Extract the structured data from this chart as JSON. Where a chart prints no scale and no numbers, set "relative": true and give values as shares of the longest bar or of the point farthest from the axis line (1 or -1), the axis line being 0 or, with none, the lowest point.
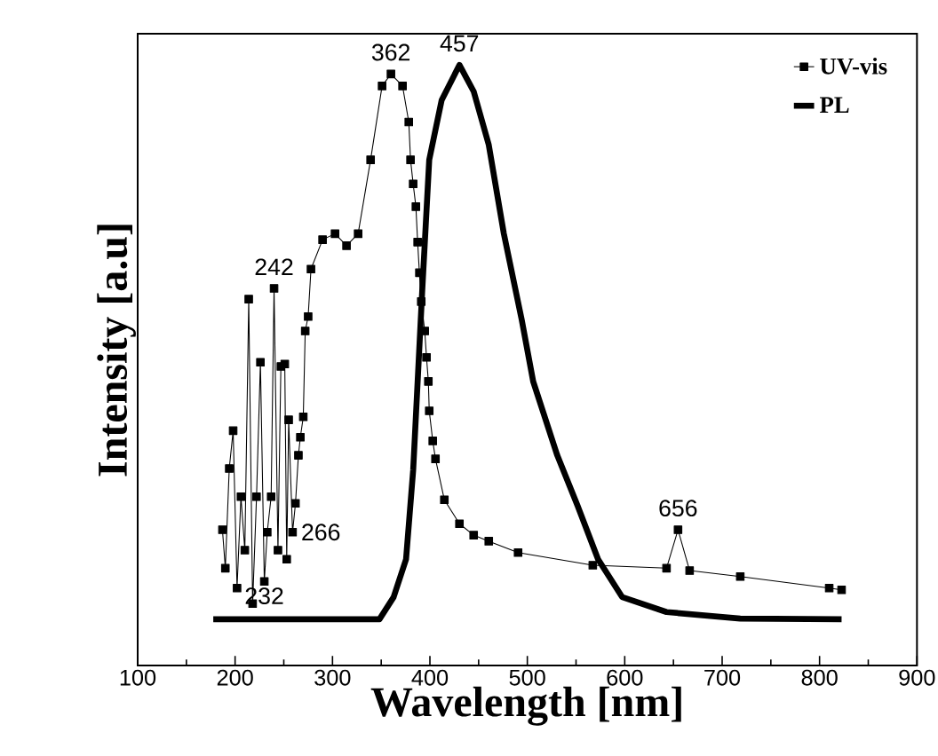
{
  "chart_data": {
    "type": "line",
    "relative": true,
    "xlabel": "Wavelength [nm]",
    "ylabel": "Intensity [a.u]",
    "xlim": [
      100,
      900
    ],
    "xticks": [
      100,
      200,
      300,
      400,
      500,
      600,
      700,
      800,
      900
    ],
    "legend": "top right",
    "line_style": "solid",
    "series": [
      {
        "name": "UV-vis",
        "color": "#000000",
        "marker": "square",
        "x": [
          187,
          190,
          194,
          198,
          202,
          206,
          210,
          214,
          218,
          222,
          226,
          230,
          233,
          237,
          240,
          244,
          247,
          251,
          253,
          255,
          259,
          262,
          265,
          267,
          270,
          272,
          275,
          277.9,
          289.8,
          302.6,
          314.4,
          326.3,
          339.1,
          350.9,
          360.0,
          371.9,
          378.3,
          380.1,
          382.8,
          385.6,
          387.4,
          389.2,
          391.1,
          394.7,
          396.5,
          398.4,
          399.3,
          402.9,
          405.7,
          414.8,
          430.3,
          444.9,
          460.4,
          490.5,
          567.2,
          642.9,
          654.7,
          666.6,
          718.6,
          809.9,
          822.6
        ],
        "values": [
          0.226,
          0.162,
          0.328,
          0.391,
          0.129,
          0.281,
          0.192,
          0.61,
          0.103,
          0.281,
          0.505,
          0.14,
          0.222,
          0.281,
          0.628,
          0.192,
          0.498,
          0.502,
          0.177,
          0.409,
          0.222,
          0.27,
          0.35,
          0.38,
          0.414,
          0.557,
          0.581,
          0.66,
          0.709,
          0.719,
          0.699,
          0.719,
          0.842,
          0.965,
          0.985,
          0.965,
          0.905,
          0.842,
          0.802,
          0.764,
          0.705,
          0.654,
          0.606,
          0.557,
          0.513,
          0.473,
          0.424,
          0.374,
          0.344,
          0.276,
          0.236,
          0.217,
          0.207,
          0.188,
          0.167,
          0.162,
          0.226,
          0.158,
          0.148,
          0.129,
          0.126
        ]
      },
      {
        "name": "PL",
        "color": "#000000",
        "marker": "none",
        "x": [
          177.6,
          348.2,
          362.8,
          375.5,
          382.8,
          387.4,
          392,
          399.3,
          412,
          430.3,
          444.9,
          460.4,
          475.9,
          494.2,
          506,
          530.7,
          551.6,
          572.6,
          597.3,
          642.9,
          718.6,
          822.6
        ],
        "values": [
          0.077,
          0.077,
          0.114,
          0.177,
          0.325,
          0.473,
          0.621,
          0.842,
          0.941,
          1.0,
          0.956,
          0.867,
          0.719,
          0.576,
          0.473,
          0.35,
          0.266,
          0.177,
          0.114,
          0.089,
          0.078,
          0.077
        ]
      }
    ],
    "annotations": [
      {
        "text": "362",
        "x": 360.0,
        "y": 0.985
      },
      {
        "text": "457",
        "x": 430.3,
        "y": 1.0
      },
      {
        "text": "242",
        "x": 240,
        "y": 0.628
      },
      {
        "text": "232",
        "x": 230,
        "y": 0.14
      },
      {
        "text": "266",
        "x": 259,
        "y": 0.222
      },
      {
        "text": "656",
        "x": 654.7,
        "y": 0.226
      }
    ]
  }
}
